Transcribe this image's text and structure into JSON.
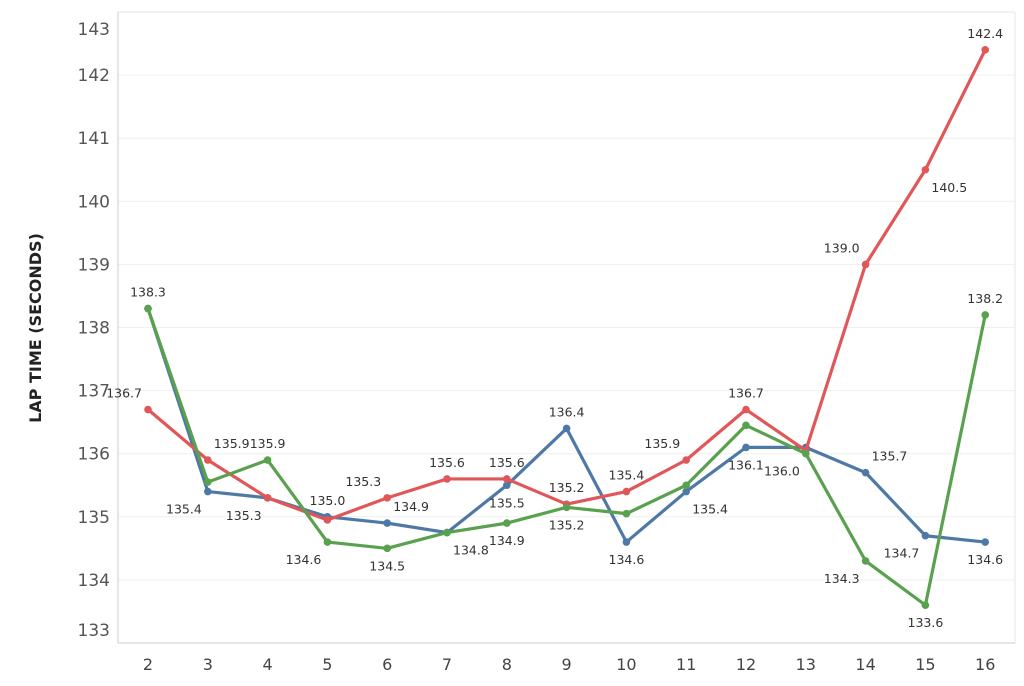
{
  "chart_data": {
    "type": "line",
    "title": "",
    "xlabel": "",
    "ylabel": "LAP TIME (SECONDS)",
    "ylim": [
      133,
      143
    ],
    "grid": true,
    "x": [
      2,
      3,
      4,
      5,
      6,
      7,
      8,
      9,
      10,
      11,
      12,
      13,
      14,
      15,
      16
    ],
    "y_ticks": [
      133,
      134,
      135,
      136,
      137,
      138,
      139,
      140,
      141,
      142,
      143
    ],
    "series": [
      {
        "name": "blue",
        "color": "#4e79a7",
        "values": [
          138.3,
          135.4,
          135.3,
          135.0,
          134.9,
          134.75,
          135.5,
          136.4,
          134.6,
          135.4,
          136.1,
          136.1,
          135.7,
          134.7,
          134.6
        ],
        "labels": [
          "138.3",
          "135.4",
          null,
          "135.0",
          "134.9",
          null,
          "135.5",
          "136.4",
          "134.6",
          "135.4",
          "136.1",
          null,
          "135.7",
          "134.7",
          "134.6"
        ],
        "label_pos": [
          "above",
          "below-left",
          null,
          "above",
          "above-right",
          null,
          "below",
          "above",
          "below",
          "below-right",
          "below",
          null,
          "above-right",
          "below-left",
          "below"
        ]
      },
      {
        "name": "red",
        "color": "#e15759",
        "values": [
          136.7,
          135.9,
          135.3,
          134.95,
          135.3,
          135.6,
          135.6,
          135.2,
          135.4,
          135.9,
          136.7,
          136.05,
          139.0,
          140.5,
          142.4
        ],
        "labels": [
          "136.7",
          "135.9",
          "135.3",
          null,
          "135.3",
          "135.6",
          "135.6",
          "135.2",
          "135.4",
          "135.9",
          "136.7",
          null,
          "139.0",
          "140.5",
          "142.4"
        ],
        "label_pos": [
          "above-left",
          "above-right",
          "below-left",
          null,
          "above-left",
          "above",
          "above",
          "above",
          "above",
          "above-left",
          "above",
          null,
          "above-left",
          "below-right",
          "above"
        ]
      },
      {
        "name": "green",
        "color": "#59a14f",
        "values": [
          138.3,
          135.55,
          135.9,
          134.6,
          134.5,
          134.75,
          134.9,
          135.15,
          135.05,
          135.5,
          136.45,
          136.0,
          134.3,
          133.6,
          138.2
        ],
        "labels": [
          null,
          null,
          "135.9",
          "134.6",
          "134.5",
          "134.8",
          "134.9",
          "135.2",
          null,
          null,
          null,
          "136.0",
          "134.3",
          "133.6",
          "138.2"
        ],
        "label_pos": [
          null,
          null,
          "above",
          "below-left",
          "below",
          "below-right",
          "below",
          "below",
          null,
          null,
          null,
          "below-left",
          "below-left",
          "below",
          "above"
        ]
      }
    ]
  }
}
